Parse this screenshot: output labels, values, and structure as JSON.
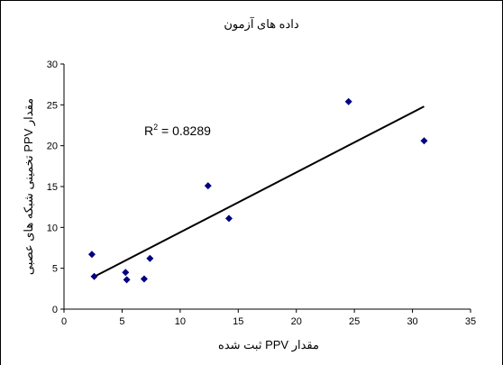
{
  "chart_data": {
    "type": "scatter",
    "title": "داده های آزمون",
    "xlabel": "مقدار PPV ثبت شده",
    "ylabel": "مقدار PPV تخمینی شبکه های عصبی",
    "xlim": [
      0,
      35
    ],
    "ylim": [
      0,
      30
    ],
    "x_ticks": [
      "0",
      "5",
      "10",
      "15",
      "20",
      "25",
      "30",
      "35"
    ],
    "y_ticks": [
      "0",
      "5",
      "10",
      "15",
      "20",
      "25",
      "30"
    ],
    "grid": false,
    "legend": "none",
    "annotation": {
      "base": "R",
      "sup": "2",
      "rest": " = 0.8289"
    },
    "points": [
      {
        "x": 2.4,
        "y": 6.7
      },
      {
        "x": 2.6,
        "y": 4.0
      },
      {
        "x": 5.3,
        "y": 4.5
      },
      {
        "x": 5.4,
        "y": 3.6
      },
      {
        "x": 6.9,
        "y": 3.7
      },
      {
        "x": 7.4,
        "y": 6.2
      },
      {
        "x": 12.4,
        "y": 15.1
      },
      {
        "x": 14.2,
        "y": 11.1
      },
      {
        "x": 24.5,
        "y": 25.4
      },
      {
        "x": 31.0,
        "y": 20.6
      }
    ],
    "trendline": {
      "from": {
        "x": 2.5,
        "y": 3.9
      },
      "to": {
        "x": 31.0,
        "y": 24.8
      }
    },
    "colors": {
      "marker": "#000080",
      "line": "#000000",
      "axis": "#000000"
    }
  }
}
